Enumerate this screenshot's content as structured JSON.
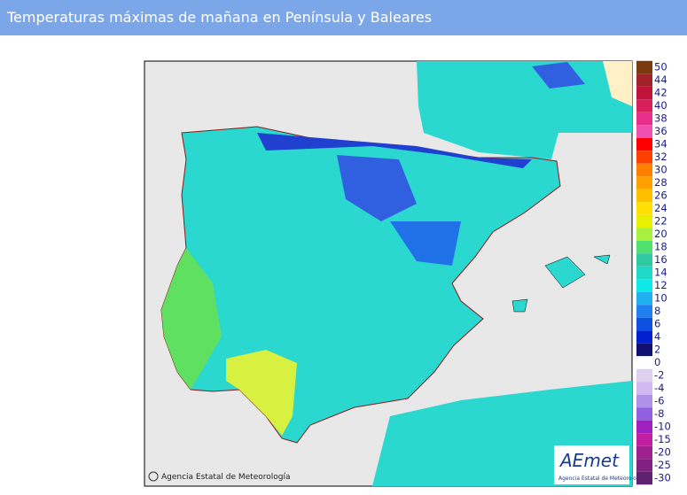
{
  "header": {
    "title": "Temperaturas máximas de mañana en Península y Baleares"
  },
  "map": {
    "copyright": "Agencia Estatal de Meteorología",
    "logo": "AEmet",
    "logo_subtitle": "Agencia Estatal de Meteorología"
  },
  "legend": {
    "items": [
      {
        "value": 50,
        "color": "#7a3b10"
      },
      {
        "value": 44,
        "color": "#a0232a"
      },
      {
        "value": 42,
        "color": "#c0143c"
      },
      {
        "value": 40,
        "color": "#d81e5b"
      },
      {
        "value": 38,
        "color": "#e8308a"
      },
      {
        "value": 36,
        "color": "#f050b0"
      },
      {
        "value": 34,
        "color": "#ff0000"
      },
      {
        "value": 32,
        "color": "#ff4000"
      },
      {
        "value": 30,
        "color": "#ff7f00"
      },
      {
        "value": 28,
        "color": "#ffa000"
      },
      {
        "value": 26,
        "color": "#ffc000"
      },
      {
        "value": 24,
        "color": "#ffe000"
      },
      {
        "value": 22,
        "color": "#e6f000"
      },
      {
        "value": 20,
        "color": "#a8f040"
      },
      {
        "value": 18,
        "color": "#50e070"
      },
      {
        "value": 16,
        "color": "#30c8a0"
      },
      {
        "value": 14,
        "color": "#20d8c8"
      },
      {
        "value": 12,
        "color": "#10e8e8"
      },
      {
        "value": 10,
        "color": "#20b0f0"
      },
      {
        "value": 8,
        "color": "#2080f0"
      },
      {
        "value": 6,
        "color": "#1050e0"
      },
      {
        "value": 4,
        "color": "#0020d0"
      },
      {
        "value": 2,
        "color": "#101070"
      },
      {
        "value": 0,
        "color": "#ffffff"
      },
      {
        "value": -2,
        "color": "#e0d0f0"
      },
      {
        "value": -4,
        "color": "#d0b8f0"
      },
      {
        "value": -6,
        "color": "#b090e8"
      },
      {
        "value": -8,
        "color": "#9060e0"
      },
      {
        "value": -10,
        "color": "#a020c0"
      },
      {
        "value": -15,
        "color": "#c020a0"
      },
      {
        "value": -20,
        "color": "#a02090"
      },
      {
        "value": -25,
        "color": "#802080"
      },
      {
        "value": -30,
        "color": "#602070"
      }
    ]
  }
}
